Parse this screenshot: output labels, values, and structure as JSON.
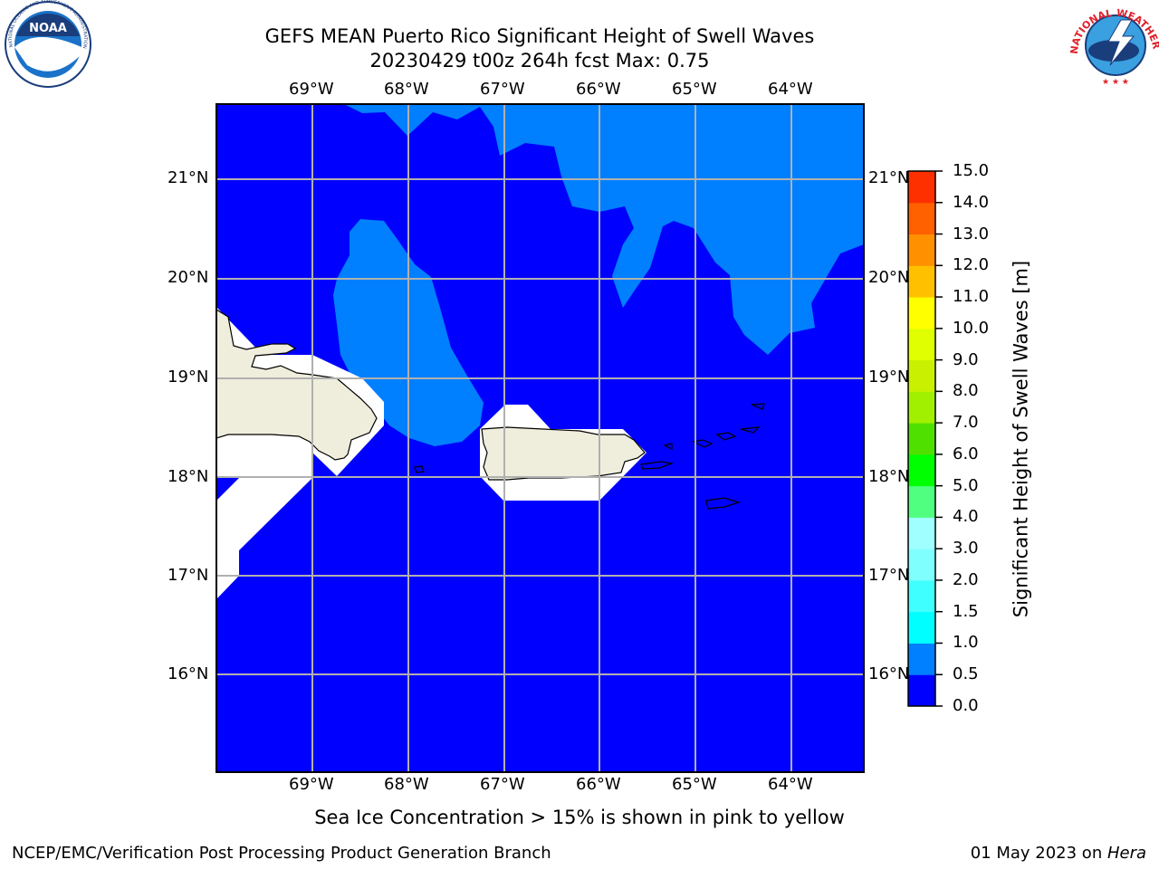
{
  "title": {
    "line1": "GEFS MEAN Puerto Rico Significant Height of Swell Waves",
    "line2": "20230429 t00z 264h fcst   Max: 0.75"
  },
  "map": {
    "lon_labels": [
      "69°W",
      "68°W",
      "67°W",
      "66°W",
      "65°W",
      "64°W"
    ],
    "lat_labels": [
      "21°N",
      "20°N",
      "19°N",
      "18°N",
      "17°N",
      "16°N"
    ],
    "colors": {
      "sea_low": "#0000ff",
      "sea_mid": "#0080ff",
      "land": "#efeedd",
      "mask": "#ffffff",
      "grid": "#b0b0b0"
    }
  },
  "colorbar": {
    "label": "Significant Height of Swell Waves [m]",
    "ticks": [
      "0.0",
      "0.5",
      "1.0",
      "1.5",
      "2.0",
      "3.0",
      "4.0",
      "5.0",
      "6.0",
      "7.0",
      "8.0",
      "9.0",
      "10.0",
      "11.0",
      "12.0",
      "13.0",
      "14.0",
      "15.0"
    ],
    "colors": [
      "#0000ff",
      "#0080ff",
      "#00ffff",
      "#40ffff",
      "#80ffff",
      "#a0ffff",
      "#50ff80",
      "#00ff00",
      "#50e000",
      "#a0f000",
      "#c8f000",
      "#e0ff00",
      "#ffff00",
      "#ffc000",
      "#ff9000",
      "#ff6000",
      "#ff3000",
      "#ff0000"
    ]
  },
  "note": "Sea Ice Concentration > 15% is shown in pink to yellow",
  "footer": {
    "left": "NCEP/EMC/Verification Post Processing Product Generation Branch",
    "date": "01 May 2023 on ",
    "machine": "Hera"
  },
  "logos": {
    "noaa": "NOAA",
    "nws_ring": "NATIONAL WEATHER SERVICE"
  }
}
